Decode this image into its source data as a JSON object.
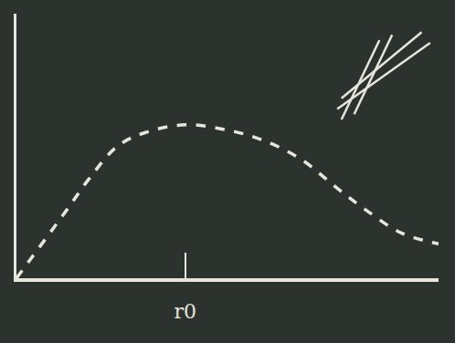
{
  "chart_data": {
    "type": "line",
    "x": [
      0,
      1.2,
      1.74,
      2.4,
      3.04,
      4.0,
      5.0,
      5.87,
      6.74,
      7.6,
      8.26,
      9.13,
      10
    ],
    "values": [
      0,
      2.6,
      3.8,
      5.0,
      5.5,
      5.8,
      5.6,
      5.2,
      4.5,
      3.4,
      2.6,
      1.7,
      1.3
    ],
    "color": "#e6e6dc",
    "line_style": "dashed",
    "xlim": [
      0,
      10
    ],
    "ylim": [
      0,
      10
    ],
    "xticks": [
      {
        "value": 4.0,
        "label": "r0"
      }
    ],
    "yticks": [],
    "tick_labels": "x",
    "grid": false
  }
}
